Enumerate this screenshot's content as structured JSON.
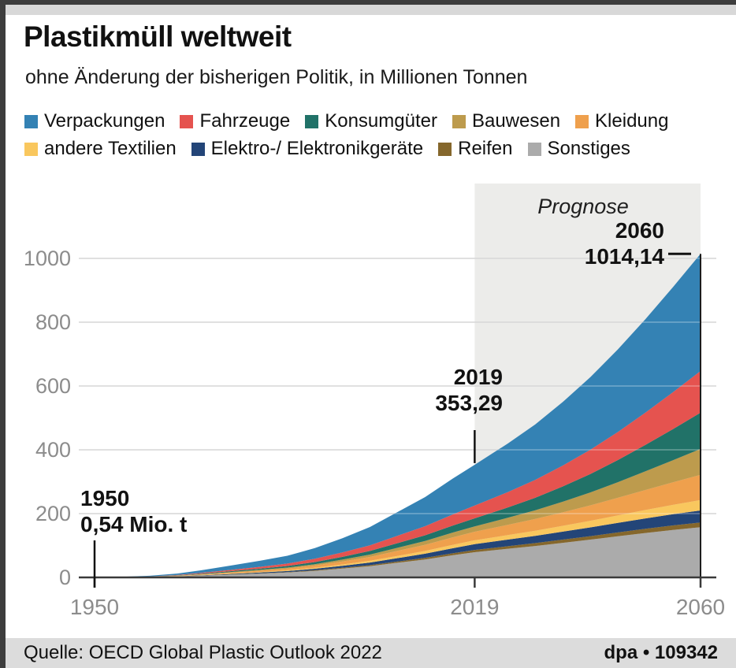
{
  "header": {
    "title": "Plastikmüll weltweit",
    "subtitle": "ohne Änderung der bisherigen Politik, in Millionen Tonnen"
  },
  "chart_data": {
    "type": "area",
    "stacked": true,
    "stack_order": "series listed top-to-bottom of stack",
    "title": "Plastikmüll weltweit",
    "unit": "Millionen Tonnen",
    "x": [
      1950,
      1955,
      1960,
      1965,
      1970,
      1975,
      1980,
      1985,
      1990,
      1995,
      2000,
      2005,
      2010,
      2015,
      2019,
      2025,
      2030,
      2035,
      2040,
      2045,
      2050,
      2055,
      2060
    ],
    "series": [
      {
        "name": "Verpackungen",
        "color": "#3482b4",
        "values": [
          0.2,
          0.7,
          1.8,
          4.3,
          8.7,
          13.8,
          18.8,
          24.6,
          33.3,
          44.5,
          57.2,
          74.2,
          91.2,
          112.2,
          127.9,
          152.0,
          173.8,
          199.1,
          227.3,
          258.8,
          293.2,
          329.4,
          367.1
        ]
      },
      {
        "name": "Fahrzeuge",
        "color": "#e5534f",
        "values": [
          0.1,
          0.2,
          0.6,
          1.4,
          2.7,
          4.3,
          5.9,
          7.7,
          10.4,
          13.9,
          17.9,
          23.2,
          28.5,
          35.0,
          39.9,
          48.4,
          56.3,
          65.6,
          76.1,
          88.0,
          101.3,
          115.6,
          130.8
        ]
      },
      {
        "name": "Konsumgüter",
        "color": "#217268",
        "values": [
          0.1,
          0.1,
          0.4,
          0.9,
          1.7,
          2.7,
          3.7,
          4.8,
          6.5,
          8.7,
          11.2,
          14.6,
          17.9,
          22.0,
          25.1,
          32.3,
          39.4,
          47.9,
          57.8,
          69.4,
          82.6,
          97.4,
          113.6
        ]
      },
      {
        "name": "Bauwesen",
        "color": "#bd9b4d",
        "values": [
          0.0,
          0.1,
          0.2,
          0.6,
          1.2,
          1.8,
          2.5,
          3.3,
          4.4,
          5.9,
          7.6,
          9.8,
          12.1,
          14.9,
          17.0,
          22.1,
          27.2,
          33.3,
          40.4,
          48.8,
          58.5,
          69.3,
          81.1
        ]
      },
      {
        "name": "Kleidung",
        "color": "#efa04d",
        "values": [
          0.0,
          0.2,
          0.4,
          0.9,
          1.8,
          2.9,
          4.0,
          5.2,
          7.0,
          9.3,
          12.0,
          15.6,
          19.2,
          23.6,
          26.9,
          32.0,
          36.7,
          42.2,
          48.4,
          55.3,
          62.8,
          70.8,
          79.1
        ]
      },
      {
        "name": "andere Textilien",
        "color": "#f9c75e",
        "values": [
          0.0,
          0.1,
          0.2,
          0.4,
          0.8,
          1.3,
          1.8,
          2.3,
          3.1,
          4.2,
          5.4,
          7.0,
          8.6,
          10.5,
          12.0,
          14.2,
          16.1,
          18.3,
          20.7,
          23.4,
          26.3,
          29.3,
          32.5
        ]
      },
      {
        "name": "Elektro-/ Elektronikgeräte",
        "color": "#234578",
        "values": [
          0.0,
          0.1,
          0.3,
          0.6,
          1.2,
          1.9,
          2.7,
          3.5,
          4.7,
          6.3,
          8.1,
          10.5,
          12.9,
          15.8,
          18.0,
          20.6,
          22.7,
          25.0,
          27.5,
          30.1,
          32.7,
          35.2,
          37.5
        ]
      },
      {
        "name": "Reifen",
        "color": "#85672c",
        "values": [
          0.0,
          0.0,
          0.1,
          0.2,
          0.5,
          0.8,
          1.0,
          1.4,
          1.8,
          2.5,
          3.2,
          4.1,
          5.0,
          6.2,
          7.1,
          8.1,
          9.0,
          10.0,
          10.9,
          12.0,
          13.1,
          14.2,
          15.2
        ]
      },
      {
        "name": "Sonstiges",
        "color": "#ababab",
        "values": [
          0.1,
          0.4,
          1.1,
          2.7,
          5.4,
          8.5,
          11.6,
          15.2,
          20.6,
          27.6,
          35.4,
          45.9,
          56.4,
          69.4,
          79.1,
          89.8,
          98.6,
          108.4,
          118.5,
          128.9,
          139.2,
          148.7,
          157.2
        ]
      }
    ],
    "ylim": [
      0,
      1050
    ],
    "yticks": [
      0,
      200,
      400,
      600,
      800,
      1000
    ],
    "ytick_labels": [
      "0",
      "200",
      "400",
      "600",
      "800",
      "1000"
    ],
    "xticks": [
      1950,
      2019,
      2060
    ],
    "xtick_labels": [
      "1950",
      "2019",
      "2060"
    ],
    "grid": true,
    "grid_color": "#c8c8c8",
    "axis_color": "#3a3a3a",
    "tick_label_color": "#8c8c8c",
    "annotation_color": "#121212",
    "forecast_start": 2019,
    "forecast_fill": "#ececea",
    "legend_position": "top",
    "annotations": {
      "forecast_label": "Prognose",
      "start": {
        "label": "1950",
        "value_label": "0,54 Mio. t",
        "year": 1950,
        "value": 0.54
      },
      "present": {
        "label": "2019",
        "value_label": "353,29",
        "year": 2019,
        "value": 353.29
      },
      "end": {
        "label": "2060",
        "value_label": "1014,14",
        "year": 2060,
        "value": 1014.14
      }
    }
  },
  "footer": {
    "source": "Quelle: OECD Global Plastic Outlook 2022",
    "credit": "dpa • 109342"
  }
}
